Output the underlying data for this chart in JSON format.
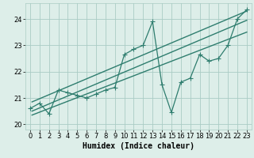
{
  "x_data": [
    0,
    1,
    2,
    3,
    4,
    5,
    6,
    7,
    8,
    9,
    10,
    11,
    12,
    13,
    14,
    15,
    16,
    17,
    18,
    19,
    20,
    21,
    22,
    23
  ],
  "y_data": [
    20.6,
    20.8,
    20.4,
    21.3,
    21.2,
    21.1,
    21.0,
    21.15,
    21.3,
    21.4,
    22.65,
    22.85,
    23.0,
    23.9,
    21.5,
    20.45,
    21.6,
    21.75,
    22.65,
    22.4,
    22.5,
    23.0,
    24.0,
    24.35
  ],
  "line_color": "#2e7d6e",
  "marker": "+",
  "markersize": 4,
  "linewidth": 0.9,
  "xlabel": "Humidex (Indice chaleur)",
  "xlim": [
    -0.5,
    23.5
  ],
  "ylim": [
    19.8,
    24.6
  ],
  "yticks": [
    20,
    21,
    22,
    23,
    24
  ],
  "xticks": [
    0,
    1,
    2,
    3,
    4,
    5,
    6,
    7,
    8,
    9,
    10,
    11,
    12,
    13,
    14,
    15,
    16,
    17,
    18,
    19,
    20,
    21,
    22,
    23
  ],
  "bg_color": "#ddeee9",
  "grid_color": "#aaccc5",
  "trend_color": "#2e7d6e",
  "trend1_x": [
    0.2,
    23.0
  ],
  "trend1_y": [
    20.85,
    24.3
  ],
  "trend2_x": [
    0.2,
    23.0
  ],
  "trend2_y": [
    20.5,
    23.95
  ],
  "trend3_x": [
    0.2,
    23.0
  ],
  "trend3_y": [
    20.35,
    23.5
  ],
  "xlabel_fontsize": 7,
  "tick_fontsize": 6
}
